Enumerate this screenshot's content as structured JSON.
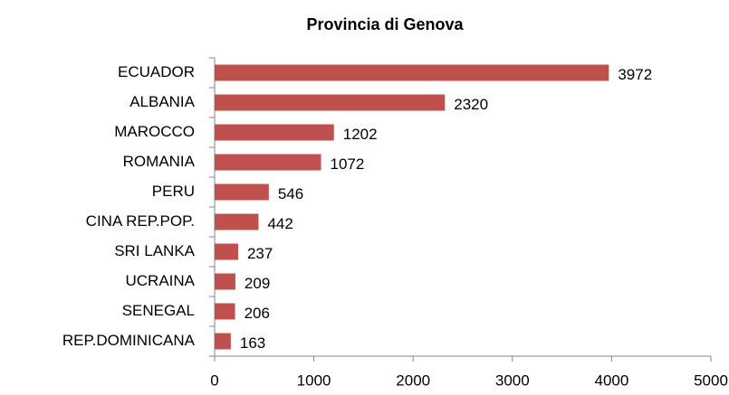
{
  "chart_data": {
    "type": "bar",
    "orientation": "horizontal",
    "title": "Provincia di Genova",
    "categories": [
      "ECUADOR",
      "ALBANIA",
      "MAROCCO",
      "ROMANIA",
      "PERU",
      "CINA REP.POP.",
      "SRI LANKA",
      "UCRAINA",
      "SENEGAL",
      "REP.DOMINICANA"
    ],
    "values": [
      3972,
      2320,
      1202,
      1072,
      546,
      442,
      237,
      209,
      206,
      163
    ],
    "color": "#c0504d",
    "xlim": [
      0,
      5000
    ],
    "xticks": [
      0,
      1000,
      2000,
      3000,
      4000,
      5000
    ],
    "grid": false
  }
}
